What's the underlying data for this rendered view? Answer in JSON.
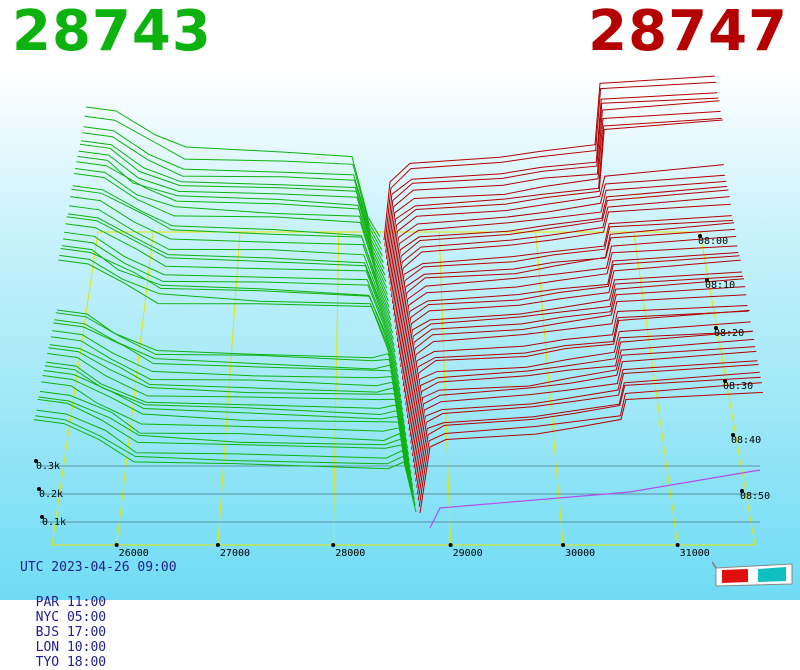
{
  "header": {
    "bid_price": "28743",
    "ask_price": "28747",
    "bid_color": "#0eb20e",
    "ask_color": "#b40000"
  },
  "footer": {
    "utc_line": "UTC 2023-04-26 09:00",
    "zones": [
      {
        "label": "PAR 11:00"
      },
      {
        "label": "NYC 05:00"
      },
      {
        "label": "BJS 17:00"
      },
      {
        "label": "LON 10:00"
      },
      {
        "label": "TYO 18:00"
      }
    ]
  },
  "icons": {
    "viewer": "3d-glasses-icon"
  },
  "chart_data": {
    "type": "3d-depth-chart",
    "x_ticks": [
      "26000",
      "27000",
      "28000",
      "29000",
      "30000",
      "31000"
    ],
    "time_ticks": [
      "08:00",
      "08:10",
      "08:20",
      "08:30",
      "08:40",
      "08:50"
    ],
    "volume_ticks": [
      "0.3k",
      "0.2k",
      "0.1k"
    ],
    "bid_color": "#0eb20e",
    "ask_color": "#b40000",
    "grid_color": "#e6e600"
  }
}
